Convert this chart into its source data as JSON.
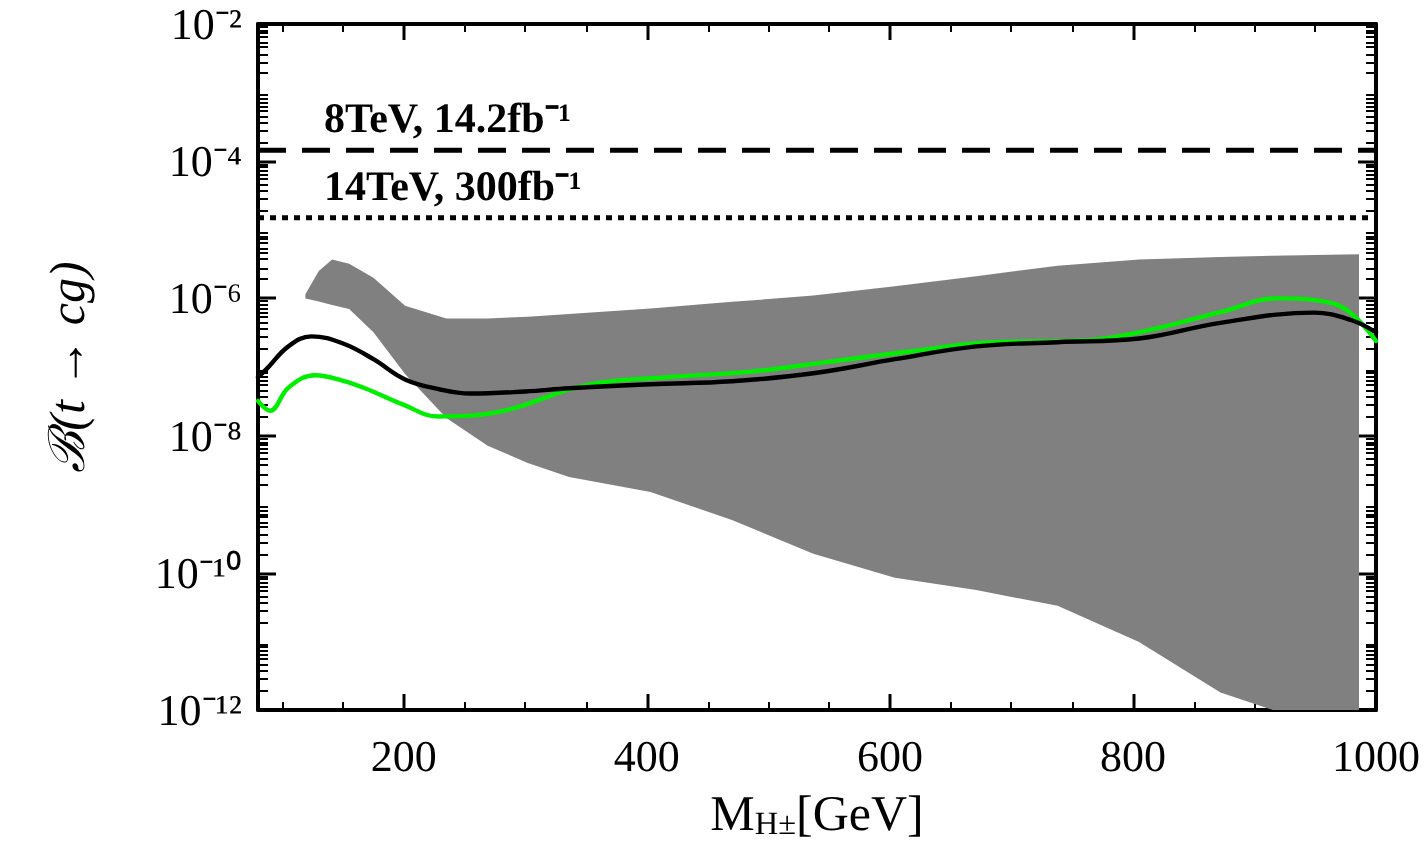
{
  "chart_data": {
    "type": "line",
    "xlabel": "M$_{H±}$[GeV]",
    "ylabel": "ℬ(t → cg)",
    "log": "y",
    "grid": false,
    "marker": "none",
    "line_style": "solid",
    "xlim": [
      80,
      1000
    ],
    "xticks": [
      200,
      400,
      600,
      800,
      1000
    ],
    "ylim": [
      1e-12,
      0.01
    ],
    "yticks": [
      {
        "value": 1e-12,
        "label": "10⁻¹²"
      },
      {
        "value": 1e-10,
        "label": "10⁻¹⁰"
      },
      {
        "value": 1e-08,
        "label": "10⁻⁸"
      },
      {
        "value": 1e-06,
        "label": "10⁻⁶"
      },
      {
        "value": 0.0001,
        "label": "10⁻⁴"
      },
      {
        "value": 0.01,
        "label": "10⁻²"
      }
    ],
    "ref_lines": [
      {
        "axis": "y",
        "value": 0.000145,
        "label": "8TeV, 14.2fb⁻¹",
        "line_style": "dashed",
        "color": "#000000"
      },
      {
        "axis": "y",
        "value": 1.5e-05,
        "label": "14TeV, 300fb⁻¹",
        "line_style": "dotted",
        "color": "#000000"
      }
    ],
    "series": [
      {
        "type": "area",
        "color": "#808080",
        "x": [
          119,
          130,
          141,
          155,
          175,
          201,
          235,
          269,
          302,
          336,
          403,
          470,
          537,
          604,
          671,
          738,
          805,
          872,
          915,
          950,
          986
        ],
        "values": [
          null,
          null,
          null,
          null,
          null,
          null,
          null,
          null,
          null,
          null,
          null,
          null,
          null,
          null,
          null,
          null,
          null,
          null,
          null,
          null,
          null
        ],
        "upper": [
          1.15e-06,
          2.5e-06,
          3.7e-06,
          3.2e-06,
          2e-06,
          7.8e-07,
          5.1e-07,
          5.1e-07,
          5.4e-07,
          5.9e-07,
          7.1e-07,
          8.9e-07,
          1.1e-06,
          1.5e-06,
          2.1e-06,
          3e-06,
          3.7e-06,
          4e-06,
          4.2e-06,
          4.3e-06,
          4.4e-06
        ],
        "lower": [
          1e-06,
          9e-07,
          8e-07,
          7e-07,
          3.2e-07,
          7.9e-08,
          1.8e-08,
          7.1e-09,
          4e-09,
          2.5e-09,
          1.5e-09,
          5.9e-10,
          1.9e-10,
          8.5e-11,
          5.6e-11,
          3.3e-11,
          9.8e-12,
          1.8e-12,
          1e-12,
          1e-12,
          1e-12
        ]
      },
      {
        "color": "#00ee00",
        "x": [
          80,
          90,
          105,
          127,
          150,
          168,
          200,
          228,
          282,
          349,
          416,
          484,
          551,
          618,
          685,
          752,
          805,
          872,
          919,
          966,
          1000
        ],
        "values": [
          3.2e-08,
          2.3e-08,
          5e-08,
          7.6e-08,
          6.3e-08,
          4.9e-08,
          2.8e-08,
          1.9e-08,
          2.3e-08,
          5.4e-08,
          7.1e-08,
          8.5e-08,
          1.2e-07,
          1.7e-07,
          2.3e-07,
          2.4e-07,
          3.2e-07,
          6.3e-07,
          1e-06,
          8.3e-07,
          2.4e-07
        ]
      },
      {
        "color": "#000000",
        "x": [
          80,
          87,
          105,
          124,
          150,
          175,
          201,
          230,
          255,
          300,
          336,
          403,
          470,
          537,
          604,
          671,
          738,
          805,
          872,
          949,
          980,
          1000
        ],
        "values": [
          7.1e-08,
          9.3e-08,
          2e-07,
          2.8e-07,
          2.2e-07,
          1.3e-07,
          6.6e-08,
          4.7e-08,
          4.1e-08,
          4.4e-08,
          4.9e-08,
          5.6e-08,
          6.2e-08,
          8.1e-08,
          1.3e-07,
          2e-07,
          2.3e-07,
          2.6e-07,
          4.4e-07,
          6.2e-07,
          4.8e-07,
          3.2e-07
        ]
      }
    ]
  }
}
